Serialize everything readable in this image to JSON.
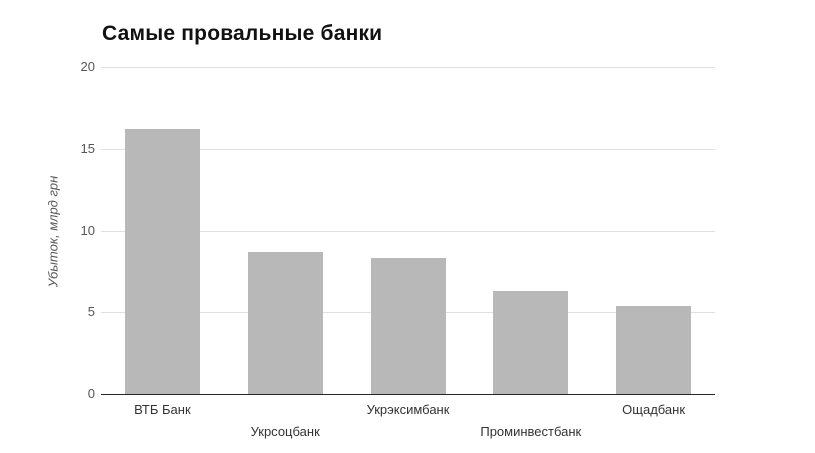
{
  "title": "Самые провальные банки",
  "chart_data": {
    "type": "bar",
    "title": "Самые провальные банки",
    "categories": [
      "ВТБ Банк",
      "Укрсоцбанк",
      "Укрэксимбанк",
      "Проминвестбанк",
      "Ощадбанк"
    ],
    "values": [
      16.2,
      8.7,
      8.3,
      6.3,
      5.4
    ],
    "xlabel": "",
    "ylabel": "Убыток, млрд грн",
    "ylim": [
      0,
      20
    ],
    "yticks": [
      0,
      5,
      10,
      15,
      20
    ],
    "grid": true,
    "legend": false,
    "bar_color": "#b8b8b8",
    "gridline_color": "#e0e0e0",
    "axis_line_color": "#262626",
    "tick_label_color": "#555555",
    "category_label_color": "#333333",
    "title_color": "#111111"
  }
}
